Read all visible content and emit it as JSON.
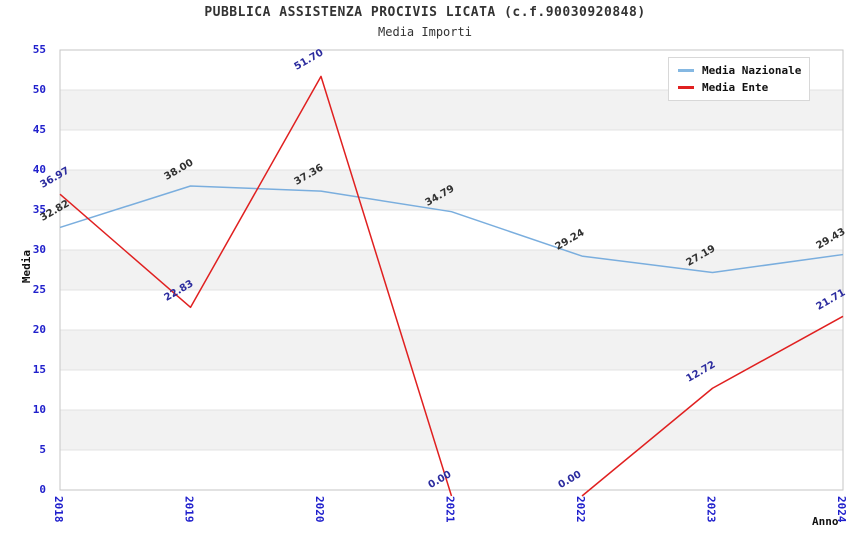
{
  "title": "PUBBLICA ASSISTENZA PROCIVIS LICATA (c.f.90030920848)",
  "subtitle": "Media Importi",
  "axes": {
    "x_label": "Anno",
    "y_label": "Media",
    "y_ticks": [
      0,
      5,
      10,
      15,
      20,
      25,
      30,
      35,
      40,
      45,
      50,
      55
    ],
    "x_ticks": [
      "2018",
      "2019",
      "2020",
      "2021",
      "2022",
      "2023",
      "2024"
    ]
  },
  "legend": {
    "items": [
      {
        "label": "Media Nazionale",
        "color": "#85b8e2"
      },
      {
        "label": "Media Ente",
        "color": "#e02020"
      }
    ]
  },
  "colors": {
    "title": "#333333",
    "tick": "#2020cc",
    "band": "#f2f2f2",
    "grid": "#e3e3e3",
    "border": "#c6c6c6",
    "blue_line": "#7aaede",
    "red_line": "#e02020",
    "blue_label": "#303030",
    "red_label": "#2b2b9e"
  },
  "chart_data": {
    "type": "line",
    "title": "PUBBLICA ASSISTENZA PROCIVIS LICATA (c.f.90030920848)",
    "subtitle": "Media Importi",
    "x": [
      2018,
      2019,
      2020,
      2021,
      2022,
      2023,
      2024
    ],
    "series": [
      {
        "name": "Media Nazionale",
        "values": [
          32.82,
          38.0,
          37.36,
          34.79,
          29.24,
          27.19,
          29.43
        ]
      },
      {
        "name": "Media Ente",
        "values": [
          36.97,
          22.83,
          51.7,
          0.0,
          0.0,
          12.72,
          21.71
        ]
      }
    ],
    "xlabel": "Anno",
    "ylabel": "Media",
    "ylim": [
      0,
      55
    ],
    "ytick_step": 5,
    "grid": "horizontal-bands",
    "legend_position": "top-right"
  }
}
